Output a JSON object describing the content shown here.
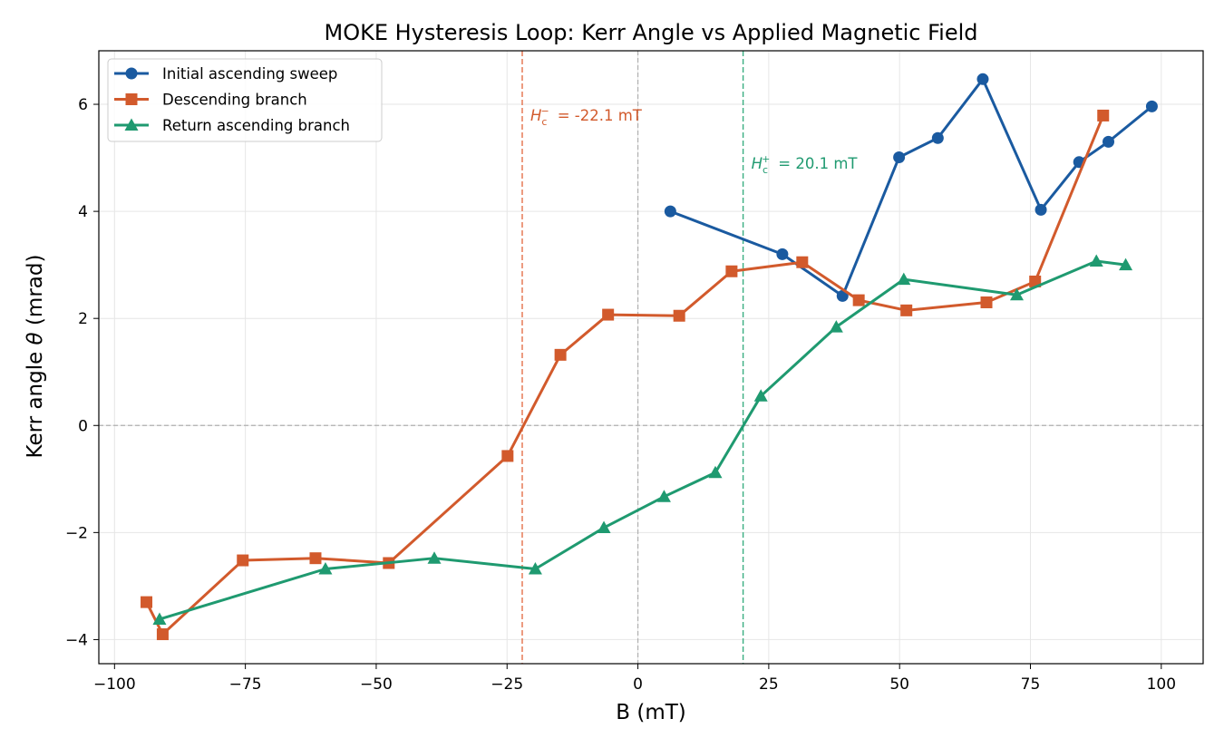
{
  "chart_data": {
    "type": "line",
    "title": "MOKE Hysteresis Loop: Kerr Angle vs Applied Magnetic Field",
    "xlabel": "B (mT)",
    "ylabel_prefix": "Kerr angle ",
    "ylabel_symbol": "θ",
    "ylabel_suffix": " (mrad)",
    "xlim": [
      -103,
      108
    ],
    "ylim": [
      -4.45,
      7.0
    ],
    "xticks": [
      -100,
      -75,
      -50,
      -25,
      0,
      25,
      50,
      75,
      100
    ],
    "xtick_labels": [
      "−100",
      "−75",
      "−50",
      "−25",
      "0",
      "25",
      "50",
      "75",
      "100"
    ],
    "yticks": [
      -4,
      -2,
      0,
      2,
      4,
      6
    ],
    "ytick_labels": [
      "−4",
      "−2",
      "0",
      "2",
      "4",
      "6"
    ],
    "grid": true,
    "legend_position": "top-left",
    "series": [
      {
        "name": "Initial ascending sweep",
        "color": "#1a5aa0",
        "marker": "circle",
        "x": [
          6.2,
          27.6,
          39.1,
          49.9,
          57.3,
          65.9,
          77.0,
          84.3,
          89.9,
          98.2
        ],
        "y": [
          4.0,
          3.2,
          2.42,
          5.01,
          5.37,
          6.47,
          4.03,
          4.92,
          5.3,
          5.96
        ]
      },
      {
        "name": "Descending branch",
        "color": "#d25a2c",
        "marker": "square",
        "x": [
          88.9,
          75.9,
          66.6,
          51.3,
          42.2,
          31.4,
          17.9,
          7.9,
          -5.7,
          -14.8,
          -24.9,
          -47.6,
          -61.6,
          -75.5,
          -90.8,
          -93.9
        ],
        "y": [
          5.79,
          2.69,
          2.3,
          2.15,
          2.34,
          3.05,
          2.88,
          2.05,
          2.07,
          1.32,
          -0.57,
          -2.57,
          -2.48,
          -2.52,
          -3.9,
          -3.3
        ]
      },
      {
        "name": "Return ascending branch",
        "color": "#1f9a70",
        "marker": "triangle",
        "x": [
          -91.4,
          -59.7,
          -38.9,
          -19.6,
          -6.5,
          5.0,
          14.8,
          23.5,
          37.9,
          50.8,
          72.4,
          87.6,
          93.2
        ],
        "y": [
          -3.62,
          -2.68,
          -2.48,
          -2.68,
          -1.91,
          -1.33,
          -0.88,
          0.55,
          1.84,
          2.73,
          2.44,
          3.07,
          3.0
        ]
      }
    ],
    "reference_lines": {
      "zero_color": "#b0b0b0",
      "coercive_negative": {
        "x": -22.1,
        "color": "#e4704a",
        "label_sup": "−",
        "label_value": "= -22.1 mT",
        "label_color": "#d25a2c",
        "label_y": 5.8
      },
      "coercive_positive": {
        "x": 20.1,
        "color": "#3aae80",
        "label_sup": "+",
        "label_value": "= 20.1 mT",
        "label_color": "#1f9a70",
        "label_y": 4.9
      }
    },
    "hc_symbol": "H",
    "hc_subscript": "c"
  }
}
